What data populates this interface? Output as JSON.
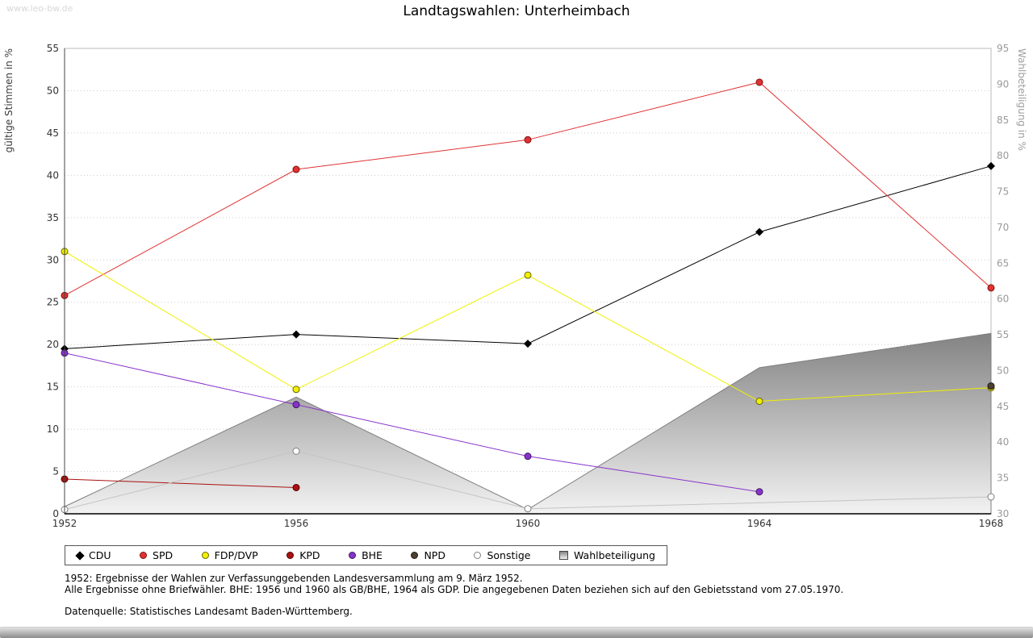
{
  "page": {
    "watermark": "www.leo-bw.de"
  },
  "chart_data": {
    "type": "line",
    "title": "Landtagswahlen: Unterheimbach",
    "categories": [
      "1952",
      "1956",
      "1960",
      "1964",
      "1968"
    ],
    "y_left": {
      "label": "gültige Stimmen in %",
      "min": 0,
      "max": 55,
      "step": 5
    },
    "y_right": {
      "label": "Wahlbeteiligung in %",
      "min": 30,
      "max": 95,
      "step": 5
    },
    "grid": "horizontal-dotted",
    "legend_position": "bottom",
    "series": [
      {
        "name": "Wahlbeteiligung",
        "type": "area",
        "axis": "right",
        "marker": "square",
        "color": "#8c8c8c",
        "fill_top": "#838383",
        "fill_bottom": "#f2f2f2",
        "values": [
          31.0,
          46.3,
          30.6,
          50.4,
          55.2
        ]
      },
      {
        "name": "CDU",
        "type": "line",
        "axis": "left",
        "marker": "diamond",
        "color": "#000000",
        "values": [
          19.5,
          21.2,
          20.1,
          33.3,
          41.1
        ]
      },
      {
        "name": "SPD",
        "type": "line",
        "axis": "left",
        "marker": "circle",
        "color": "#e03232",
        "marker_stroke": "#801010",
        "values": [
          25.8,
          40.7,
          44.2,
          51.0,
          26.7
        ]
      },
      {
        "name": "FDP/DVP",
        "type": "line",
        "axis": "left",
        "marker": "circle",
        "color": "#f0f000",
        "marker_stroke": "#666600",
        "values": [
          31.0,
          14.7,
          28.2,
          13.3,
          14.9
        ]
      },
      {
        "name": "KPD",
        "type": "line",
        "axis": "left",
        "marker": "circle",
        "color": "#aa1111",
        "marker_stroke": "#550000",
        "values": [
          4.1,
          3.1,
          null,
          null,
          null
        ]
      },
      {
        "name": "BHE",
        "type": "line",
        "axis": "left",
        "marker": "circle",
        "color": "#8833cc",
        "marker_stroke": "#3d1a66",
        "values": [
          19.0,
          12.9,
          6.8,
          2.6,
          null
        ]
      },
      {
        "name": "NPD",
        "type": "line",
        "axis": "left",
        "marker": "circle",
        "color": "#4d4030",
        "marker_stroke": "#1f1a12",
        "values": [
          null,
          null,
          null,
          null,
          15.1
        ]
      },
      {
        "name": "Sonstige",
        "type": "line",
        "axis": "left",
        "marker": "circle",
        "color": "#c4c4c4",
        "marker_fill": "#ffffff",
        "marker_stroke": "#808080",
        "values": [
          0.5,
          7.4,
          0.6,
          null,
          2.0
        ]
      }
    ]
  },
  "legend": {
    "items": [
      "CDU",
      "SPD",
      "FDP/DVP",
      "KPD",
      "BHE",
      "NPD",
      "Sonstige",
      "Wahlbeteiligung"
    ]
  },
  "footnotes": [
    "1952: Ergebnisse der Wahlen zur Verfassunggebenden Landesversammlung am 9. März 1952.",
    "Alle Ergebnisse ohne Briefwähler. BHE: 1956 und 1960 als GB/BHE, 1964 als GDP. Die angegebenen Daten beziehen sich auf den Gebietsstand vom 27.05.1970.",
    "Datenquelle: Statistisches Landesamt Baden-Württemberg."
  ]
}
